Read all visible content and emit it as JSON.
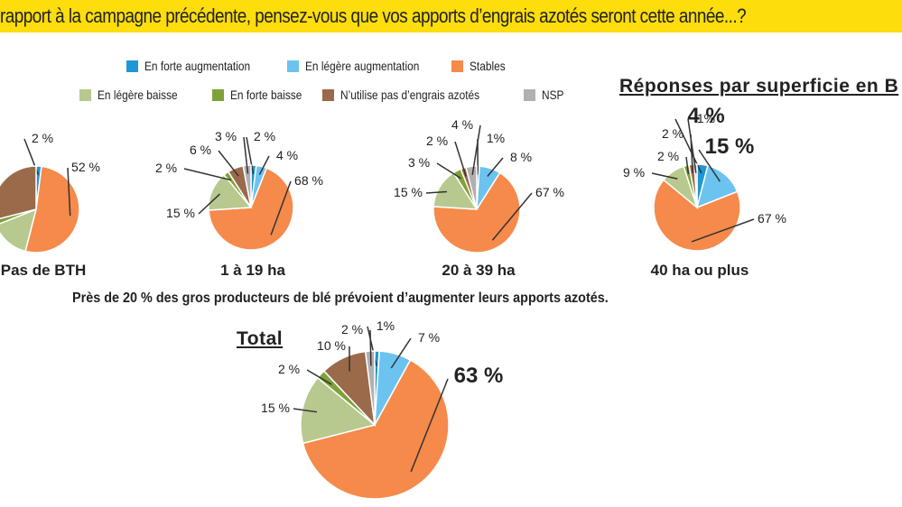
{
  "title": "rapport à la campagne précédente, pensez-vous que vos apports d’engrais azotés seront cette année...?",
  "heading": "Réponses par superficie en B",
  "note": "Près de 20 % des gros producteurs de blé prévoient d’augmenter leurs apports azotés.",
  "total_heading": "Total",
  "colors": {
    "title_bar": "#fddd0b",
    "En forte augmentation": "#1f97d4",
    "En légère augmentation": "#6cc3ef",
    "Stables": "#f58a4b",
    "En légère baisse": "#b7c98e",
    "En forte baisse": "#7ea23a",
    "N’utilise pas d’engrais azotés": "#9a6a4a",
    "NSP": "#b0b0b0"
  },
  "legend": [
    "En forte augmentation",
    "En légère augmentation",
    "Stables",
    "En légère baisse",
    "En forte baisse",
    "N’utilise pas d’engrais azotés",
    "NSP"
  ],
  "chart_data": [
    {
      "type": "pie",
      "title": "Pas de BTH",
      "categories": [
        "En forte augmentation",
        "En légère augmentation",
        "Stables",
        "En légère baisse",
        "En forte baisse",
        "N’utilise pas d’engrais azotés",
        "NSP"
      ],
      "values": [
        2,
        0,
        52,
        15,
        2,
        29,
        0
      ],
      "labels": [
        "2 %",
        "",
        "52 %",
        "",
        "",
        "",
        ""
      ]
    },
    {
      "type": "pie",
      "title": "1 à 19 ha",
      "categories": [
        "En forte augmentation",
        "En légère augmentation",
        "Stables",
        "En légère baisse",
        "En forte baisse",
        "N’utilise pas d’engrais azotés",
        "NSP"
      ],
      "values": [
        2,
        4,
        68,
        15,
        2,
        6,
        3
      ],
      "labels": [
        "2 %",
        "4 %",
        "68 %",
        "15 %",
        "2 %",
        "6 %",
        "3 %"
      ]
    },
    {
      "type": "pie",
      "title": "20 à 39 ha",
      "categories": [
        "En forte augmentation",
        "En légère augmentation",
        "Stables",
        "En légère baisse",
        "En forte baisse",
        "N’utilise pas d’engrais azotés",
        "NSP"
      ],
      "values": [
        1,
        8,
        67,
        15,
        3,
        2,
        4
      ],
      "labels": [
        "1%",
        "8 %",
        "67 %",
        "15 %",
        "3 %",
        "2 %",
        "4 %"
      ]
    },
    {
      "type": "pie",
      "title": "40 ha ou plus",
      "categories": [
        "En forte augmentation",
        "En légère augmentation",
        "Stables",
        "En légère baisse",
        "En forte baisse",
        "N’utilise pas d’engrais azotés",
        "NSP"
      ],
      "values": [
        4,
        15,
        67,
        9,
        2,
        2,
        1
      ],
      "labels": [
        "4 %",
        "15 %",
        "67 %",
        "9 %",
        "2 %",
        "2 %",
        "1%"
      ]
    },
    {
      "type": "pie",
      "title": "Total",
      "categories": [
        "En forte augmentation",
        "En légère augmentation",
        "Stables",
        "En légère baisse",
        "En forte baisse",
        "N’utilise pas d’engrais azotés",
        "NSP"
      ],
      "values": [
        1,
        7,
        63,
        15,
        2,
        10,
        2
      ],
      "labels": [
        "1%",
        "7 %",
        "63 %",
        "15 %",
        "2 %",
        "10 %",
        "2 %"
      ]
    }
  ]
}
